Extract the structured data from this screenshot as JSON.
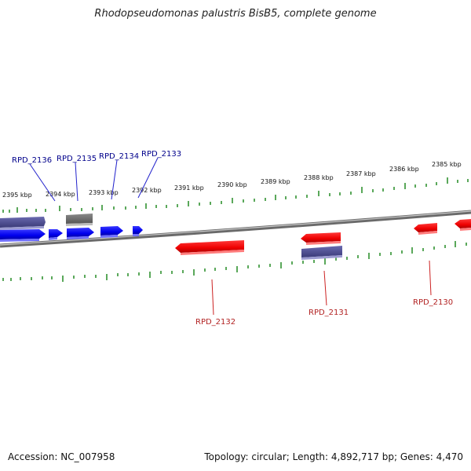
{
  "title": "Rhodopseudomonas palustris BisB5, complete genome",
  "footer": {
    "accession": "Accession: NC_007958",
    "info": "Topology: circular; Length: 4,892,717 bp; Genes: 4,470"
  },
  "ruler": {
    "ticks": [
      "2395 kbp",
      "2394 kbp",
      "2393 kbp",
      "2392 kbp",
      "2391 kbp",
      "2390 kbp",
      "2389 kbp",
      "2388 kbp",
      "2387 kbp",
      "2386 kbp",
      "2385 kbp"
    ]
  },
  "gene_labels": {
    "top": [
      "RPD_2136",
      "RPD_2135",
      "RPD_2134",
      "RPD_2133"
    ],
    "bottom": [
      "RPD_2132",
      "RPD_2131",
      "RPD_2130"
    ]
  },
  "colors": {
    "forward_gene": "#0000ff",
    "reverse_gene": "#ff0000",
    "cds_purple": "#4b4b8f",
    "cds_gray": "#6e6e6e",
    "backbone": "#808080",
    "tick": "#228b22",
    "label_top": "#00008b",
    "label_bottom": "#b22222"
  }
}
